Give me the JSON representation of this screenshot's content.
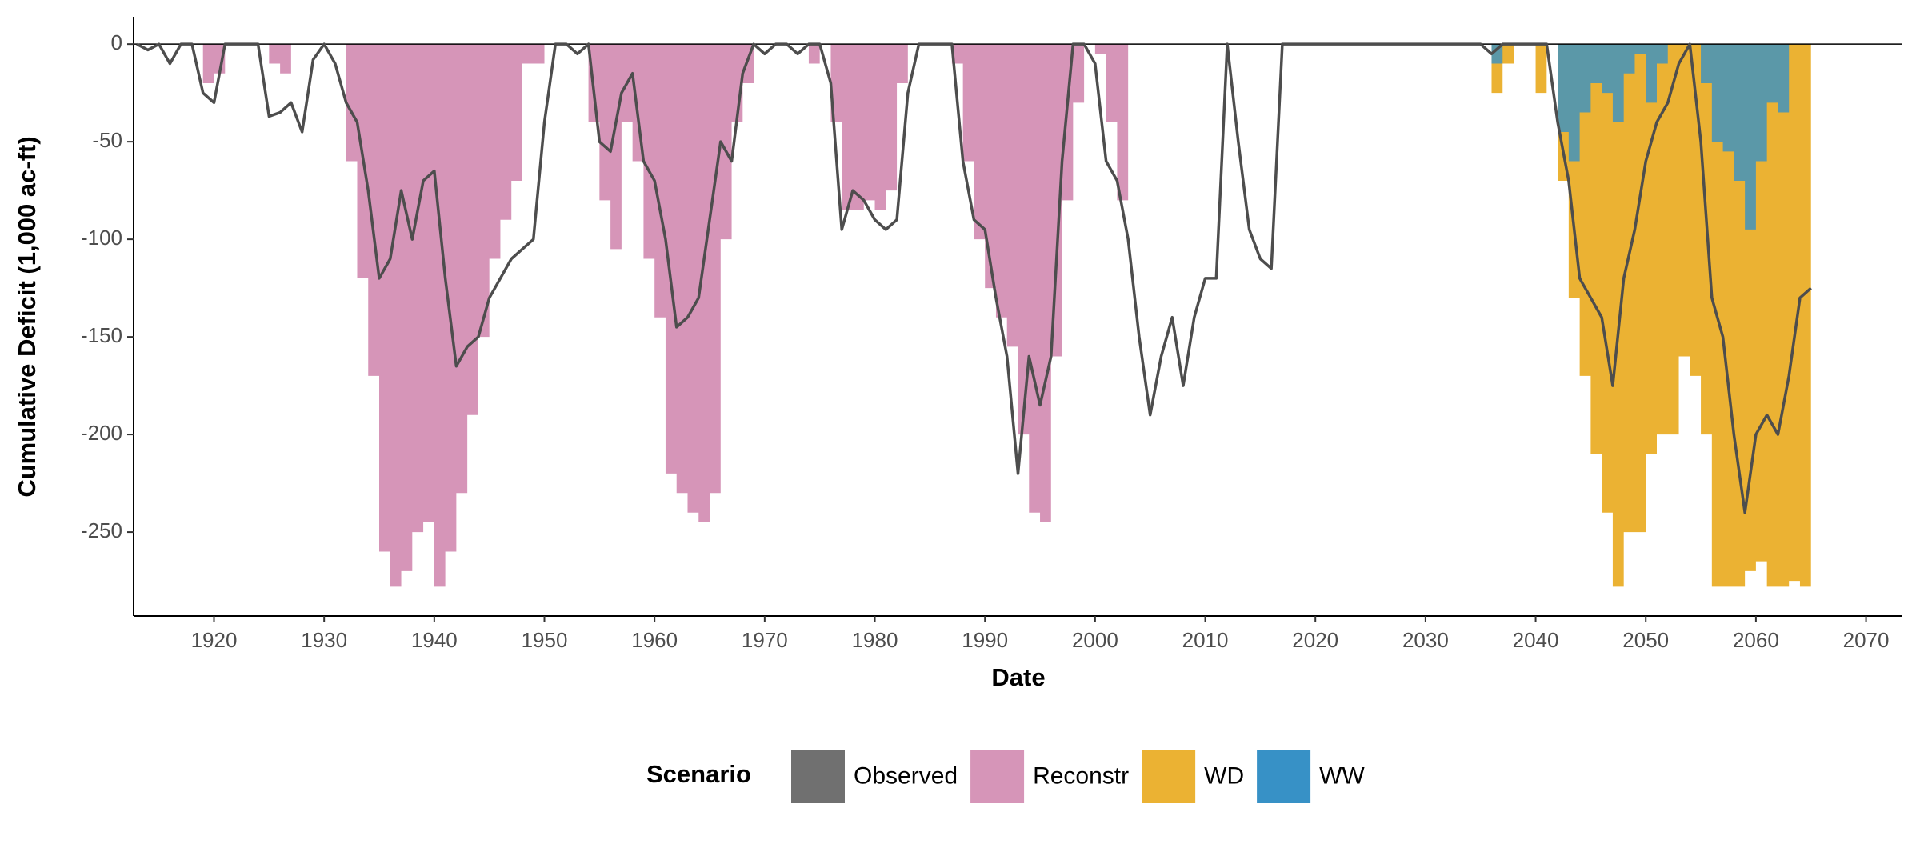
{
  "chart_data": {
    "type": "area",
    "xlabel": "Date",
    "ylabel": "Cumulative Deficit (1,000 ac-ft)",
    "legend_title": "Scenario",
    "legend": "bottom",
    "xlim": [
      1912.7,
      2073.3
    ],
    "ylim": [
      -293,
      14
    ],
    "xticks": [
      1920,
      1930,
      1940,
      1950,
      1960,
      1970,
      1980,
      1990,
      2000,
      2010,
      2020,
      2030,
      2040,
      2050,
      2060,
      2070
    ],
    "yticks": [
      0,
      -50,
      -100,
      -150,
      -200,
      -250
    ],
    "x": [
      1913,
      1914,
      1915,
      1916,
      1917,
      1918,
      1919,
      1920,
      1921,
      1922,
      1923,
      1924,
      1925,
      1926,
      1927,
      1928,
      1929,
      1930,
      1931,
      1932,
      1933,
      1934,
      1935,
      1936,
      1937,
      1938,
      1939,
      1940,
      1941,
      1942,
      1943,
      1944,
      1945,
      1946,
      1947,
      1948,
      1949,
      1950,
      1951,
      1952,
      1953,
      1954,
      1955,
      1956,
      1957,
      1958,
      1959,
      1960,
      1961,
      1962,
      1963,
      1964,
      1965,
      1966,
      1967,
      1968,
      1969,
      1970,
      1971,
      1972,
      1973,
      1974,
      1975,
      1976,
      1977,
      1978,
      1979,
      1980,
      1981,
      1982,
      1983,
      1984,
      1985,
      1986,
      1987,
      1988,
      1989,
      1990,
      1991,
      1992,
      1993,
      1994,
      1995,
      1996,
      1997,
      1998,
      1999,
      2000,
      2001,
      2002,
      2003,
      2004,
      2005,
      2006,
      2007,
      2008,
      2009,
      2010,
      2011,
      2012,
      2013,
      2014,
      2015,
      2016,
      2017,
      2018,
      2019,
      2020,
      2021,
      2022,
      2023,
      2024,
      2025,
      2026,
      2027,
      2028,
      2029,
      2030,
      2031,
      2032,
      2033,
      2034,
      2035,
      2036,
      2037,
      2038,
      2039,
      2040,
      2041,
      2042,
      2043,
      2044,
      2045,
      2046,
      2047,
      2048,
      2049,
      2050,
      2051,
      2052,
      2053,
      2054,
      2055,
      2056,
      2057,
      2058,
      2059,
      2060,
      2061,
      2062,
      2063,
      2064,
      2065
    ],
    "series": [
      {
        "name": "Observed",
        "color": "#4d4d4d",
        "legend_color": "#707070",
        "kind": "line",
        "values": [
          0,
          -3,
          0,
          -10,
          0,
          0,
          -25,
          -30,
          0,
          0,
          0,
          0,
          -37,
          -35,
          -30,
          -45,
          -8,
          0,
          -10,
          -30,
          -40,
          -75,
          -120,
          -110,
          -75,
          -100,
          -70,
          -65,
          -120,
          -165,
          -155,
          -150,
          -130,
          -120,
          -110,
          -105,
          -100,
          -40,
          0,
          0,
          -5,
          0,
          -50,
          -55,
          -25,
          -15,
          -60,
          -70,
          -100,
          -145,
          -140,
          -130,
          -90,
          -50,
          -60,
          -15,
          0,
          -5,
          0,
          0,
          -5,
          0,
          0,
          -20,
          -95,
          -75,
          -80,
          -90,
          -95,
          -90,
          -25,
          0,
          0,
          0,
          0,
          -60,
          -90,
          -95,
          -130,
          -160,
          -220,
          -160,
          -185,
          -160,
          -60,
          0,
          0,
          -10,
          -60,
          -70,
          -100,
          -150,
          -190,
          -160,
          -140,
          -175,
          -140,
          -120,
          -120,
          0,
          -50,
          -95,
          -110,
          -115,
          0,
          0,
          0,
          0,
          0,
          0,
          0,
          0,
          0,
          0,
          0,
          0,
          0,
          0,
          0,
          0,
          0,
          0,
          0,
          -5,
          0,
          0,
          0,
          0,
          0,
          -40,
          -70,
          -120,
          -130,
          -140,
          -175,
          -120,
          -95,
          -60,
          -40,
          -30,
          -10,
          0,
          -50,
          -130,
          -150,
          -200,
          -240,
          -200,
          -190,
          -200,
          -170,
          -130,
          -125
        ]
      },
      {
        "name": "Reconstr",
        "color": "#d695b8",
        "kind": "area",
        "values": [
          0,
          0,
          0,
          0,
          0,
          0,
          -20,
          -15,
          0,
          0,
          0,
          0,
          -10,
          -15,
          0,
          0,
          0,
          0,
          0,
          -60,
          -120,
          -170,
          -260,
          -278,
          -270,
          -250,
          -245,
          -278,
          -260,
          -230,
          -190,
          -150,
          -110,
          -90,
          -70,
          -10,
          -10,
          0,
          0,
          0,
          0,
          -40,
          -80,
          -105,
          -40,
          -60,
          -110,
          -140,
          -220,
          -230,
          -240,
          -245,
          -230,
          -100,
          -40,
          -20,
          0,
          0,
          0,
          0,
          0,
          -10,
          0,
          -40,
          -85,
          -85,
          -80,
          -85,
          -75,
          -20,
          0,
          0,
          0,
          0,
          -10,
          -60,
          -100,
          -125,
          -140,
          -155,
          -200,
          -240,
          -245,
          -160,
          -80,
          -30,
          0,
          -5,
          -40,
          -80,
          -150,
          null,
          null,
          null,
          null,
          null,
          null,
          null,
          null,
          null,
          null,
          null,
          null,
          null,
          null,
          null,
          null,
          null,
          null,
          null,
          null,
          null,
          null,
          null,
          null,
          null,
          null,
          null,
          null,
          null,
          null,
          null,
          null,
          null,
          null,
          null,
          null,
          null,
          null,
          null,
          null,
          null,
          null,
          null,
          null,
          null,
          null,
          null,
          null,
          null,
          null,
          null,
          null,
          null,
          null,
          null,
          null,
          null,
          null,
          null,
          null,
          null,
          null
        ]
      },
      {
        "name": "WD",
        "color": "#ebb233",
        "kind": "area",
        "values": [
          null,
          null,
          null,
          null,
          null,
          null,
          null,
          null,
          null,
          null,
          null,
          null,
          null,
          null,
          null,
          null,
          null,
          null,
          null,
          null,
          null,
          null,
          null,
          null,
          null,
          null,
          null,
          null,
          null,
          null,
          null,
          null,
          null,
          null,
          null,
          null,
          null,
          null,
          null,
          null,
          null,
          null,
          null,
          null,
          null,
          null,
          null,
          null,
          null,
          null,
          null,
          null,
          null,
          null,
          null,
          null,
          null,
          null,
          null,
          null,
          null,
          null,
          null,
          null,
          null,
          null,
          null,
          null,
          null,
          null,
          null,
          null,
          null,
          null,
          null,
          null,
          null,
          null,
          null,
          null,
          null,
          null,
          null,
          null,
          null,
          null,
          null,
          null,
          null,
          null,
          null,
          null,
          null,
          null,
          null,
          null,
          null,
          null,
          null,
          null,
          null,
          null,
          null,
          null,
          null,
          null,
          null,
          null,
          null,
          null,
          null,
          null,
          null,
          null,
          null,
          null,
          null,
          null,
          null,
          null,
          null,
          null,
          null,
          -25,
          -10,
          0,
          0,
          -25,
          0,
          -70,
          -130,
          -170,
          -210,
          -240,
          -278,
          -250,
          -250,
          -210,
          -200,
          -200,
          -160,
          -170,
          -200,
          -278,
          -278,
          -278,
          -270,
          -265,
          -278,
          -278,
          -275,
          -278,
          -278
        ]
      },
      {
        "name": "WW",
        "color": "#3791c6",
        "kind": "area",
        "values": [
          null,
          null,
          null,
          null,
          null,
          null,
          null,
          null,
          null,
          null,
          null,
          null,
          null,
          null,
          null,
          null,
          null,
          null,
          null,
          null,
          null,
          null,
          null,
          null,
          null,
          null,
          null,
          null,
          null,
          null,
          null,
          null,
          null,
          null,
          null,
          null,
          null,
          null,
          null,
          null,
          null,
          null,
          null,
          null,
          null,
          null,
          null,
          null,
          null,
          null,
          null,
          null,
          null,
          null,
          null,
          null,
          null,
          null,
          null,
          null,
          null,
          null,
          null,
          null,
          null,
          null,
          null,
          null,
          null,
          null,
          null,
          null,
          null,
          null,
          null,
          null,
          null,
          null,
          null,
          null,
          null,
          null,
          null,
          null,
          null,
          null,
          null,
          null,
          null,
          null,
          null,
          null,
          null,
          null,
          null,
          null,
          null,
          null,
          null,
          null,
          null,
          null,
          null,
          null,
          null,
          null,
          null,
          null,
          null,
          null,
          null,
          null,
          null,
          null,
          null,
          null,
          null,
          null,
          null,
          null,
          null,
          null,
          null,
          -10,
          0,
          0,
          0,
          0,
          0,
          -45,
          -60,
          -35,
          -20,
          -25,
          -40,
          -15,
          -5,
          -30,
          -10,
          0,
          0,
          0,
          -20,
          -50,
          -55,
          -70,
          -95,
          -60,
          -30,
          -35,
          0,
          0,
          0
        ]
      }
    ]
  }
}
